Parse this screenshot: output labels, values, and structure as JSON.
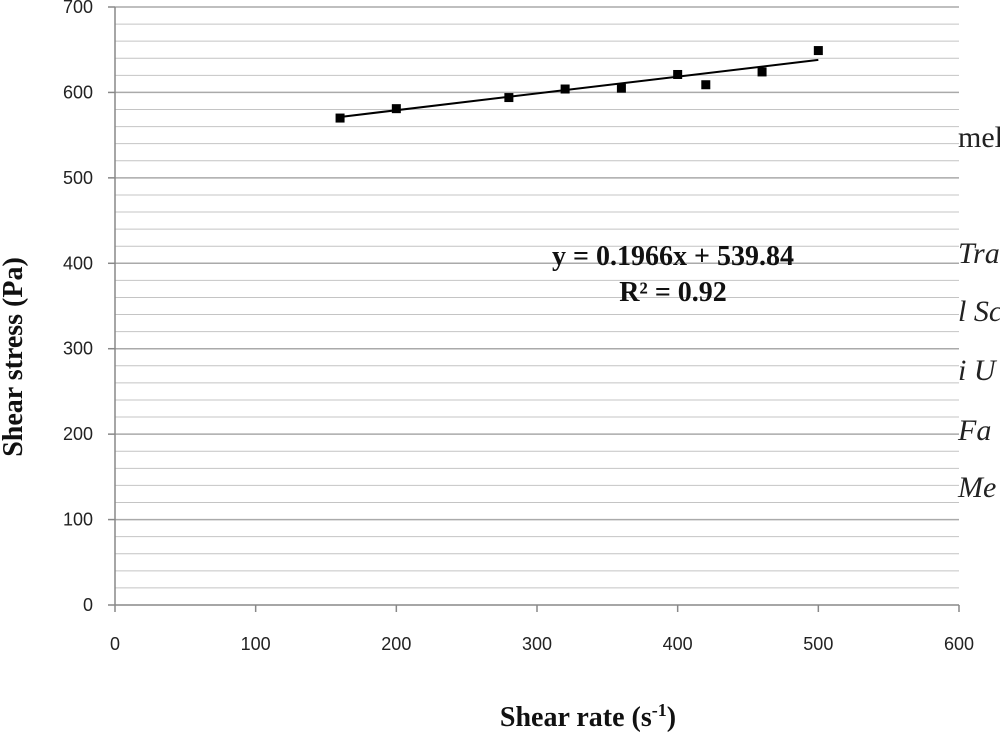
{
  "chart_data": {
    "type": "scatter",
    "xlabel": "Shear rate (s",
    "xlabel_sup": "-1",
    "xlabel_end": ")",
    "ylabel": "Shear stress (Pa)",
    "xlim": [
      0,
      600
    ],
    "ylim": [
      0,
      700
    ],
    "x_ticks": [
      0,
      100,
      200,
      300,
      400,
      500,
      600
    ],
    "y_ticks": [
      0,
      100,
      200,
      300,
      400,
      500,
      600,
      700
    ],
    "y_minor_step": 20,
    "x_ticks_text": [
      "0",
      "100",
      "200",
      "300",
      "400",
      "500",
      "600"
    ],
    "y_ticks_text": [
      "0",
      "100",
      "200",
      "300",
      "400",
      "500",
      "600",
      "700"
    ],
    "grid": true,
    "points": [
      {
        "x": 160,
        "y": 570
      },
      {
        "x": 200,
        "y": 581
      },
      {
        "x": 280,
        "y": 594
      },
      {
        "x": 320,
        "y": 604
      },
      {
        "x": 360,
        "y": 605
      },
      {
        "x": 400,
        "y": 621
      },
      {
        "x": 420,
        "y": 609
      },
      {
        "x": 460,
        "y": 624
      },
      {
        "x": 500,
        "y": 649
      }
    ],
    "trendline": {
      "slope": 0.1966,
      "intercept": 539.84,
      "x_start": 160,
      "x_end": 500
    },
    "equation_text": "y = 0.1966x + 539.84",
    "r2_text": "R² = 0.92",
    "marker_color": "#000000",
    "gridline_color": "#aaaaaa"
  },
  "background_text": [
    "mel",
    "Tra",
    "l Sc",
    "i U",
    " Fa",
    "Me"
  ]
}
